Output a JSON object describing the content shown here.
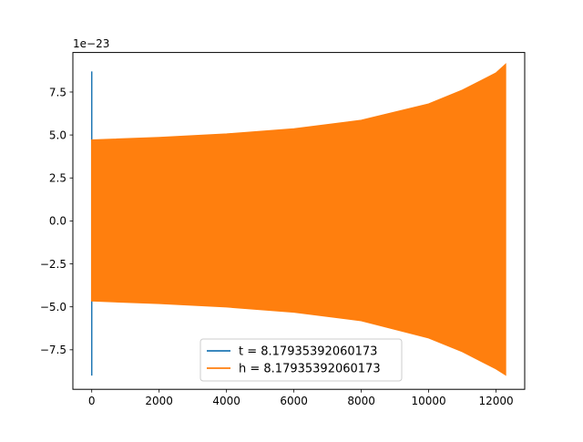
{
  "chart_data": {
    "type": "line",
    "title": "",
    "xlabel": "",
    "ylabel": "",
    "offset_text": "1e−23",
    "xlim": [
      -560,
      12850
    ],
    "ylim": [
      -9.8,
      9.8
    ],
    "y_multiplier_exponent": -23,
    "x_ticks": [
      0,
      2000,
      4000,
      6000,
      8000,
      10000,
      12000
    ],
    "x_tick_labels": [
      "0",
      "2000",
      "4000",
      "6000",
      "8000",
      "10000",
      "12000"
    ],
    "y_ticks": [
      7.5,
      5.0,
      2.5,
      0.0,
      -2.5,
      -5.0,
      -7.5
    ],
    "y_tick_labels": [
      "7.5",
      "5.0",
      "2.5",
      "0.0",
      "−2.5",
      "−5.0",
      "−7.5"
    ],
    "grid": false,
    "legend_position": "lower center",
    "series": [
      {
        "name": "t = 8.17935392060173",
        "color": "#1f77b4",
        "style": "vertical spike at x=0",
        "points": [
          {
            "x": 0,
            "y": -9.0
          },
          {
            "x": 0,
            "y": 8.7
          }
        ]
      },
      {
        "name": "h = 8.17935392060173",
        "color": "#ff7f0e",
        "style": "oscillation filling band between +envelope and -envelope",
        "envelope": [
          {
            "x": 0,
            "upper": 4.7,
            "lower": -4.65
          },
          {
            "x": 2000,
            "upper": 4.85,
            "lower": -4.8
          },
          {
            "x": 4000,
            "upper": 5.05,
            "lower": -5.0
          },
          {
            "x": 6000,
            "upper": 5.35,
            "lower": -5.3
          },
          {
            "x": 8000,
            "upper": 5.85,
            "lower": -5.8
          },
          {
            "x": 10000,
            "upper": 6.8,
            "lower": -6.8
          },
          {
            "x": 11000,
            "upper": 7.6,
            "lower": -7.6
          },
          {
            "x": 11600,
            "upper": 8.2,
            "lower": -8.2
          },
          {
            "x": 12000,
            "upper": 8.6,
            "lower": -8.6
          },
          {
            "x": 12280,
            "upper": 9.1,
            "lower": -8.95
          }
        ]
      }
    ]
  }
}
